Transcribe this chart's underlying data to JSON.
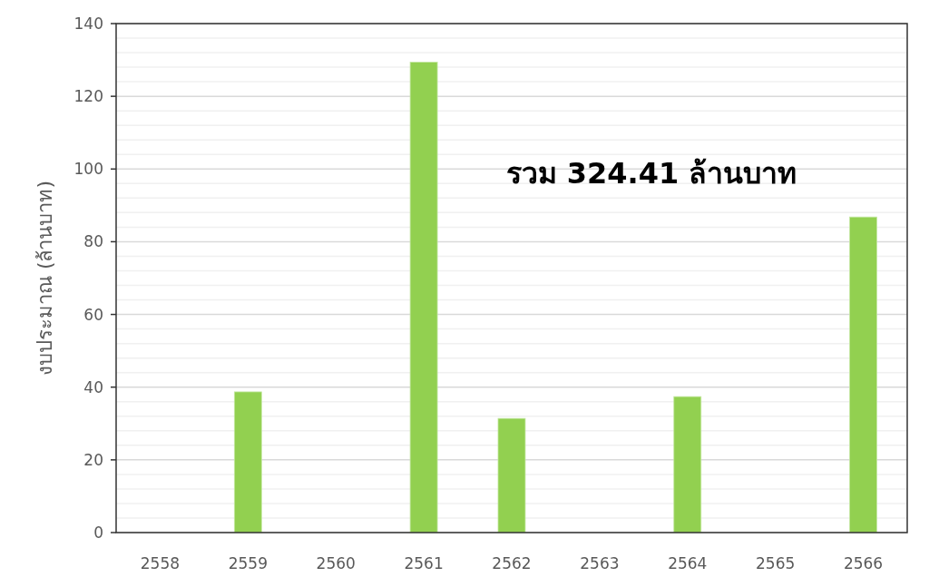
{
  "chart_data": {
    "type": "bar",
    "ylabel": "งบประมาณ (ล้านบาท)",
    "categories": [
      "2558",
      "2559",
      "2560",
      "2561",
      "2562",
      "2563",
      "2564",
      "2565",
      "2566"
    ],
    "values": [
      null,
      38.7,
      null,
      129.4,
      31.4,
      null,
      37.4,
      null,
      86.8
    ],
    "color": "#92d050",
    "ylim": [
      0,
      140
    ],
    "yticks": [
      0,
      20,
      40,
      60,
      80,
      100,
      120,
      140
    ],
    "grid": "y",
    "annotations": [
      "รวม 324.41 ล้านบาท"
    ]
  }
}
